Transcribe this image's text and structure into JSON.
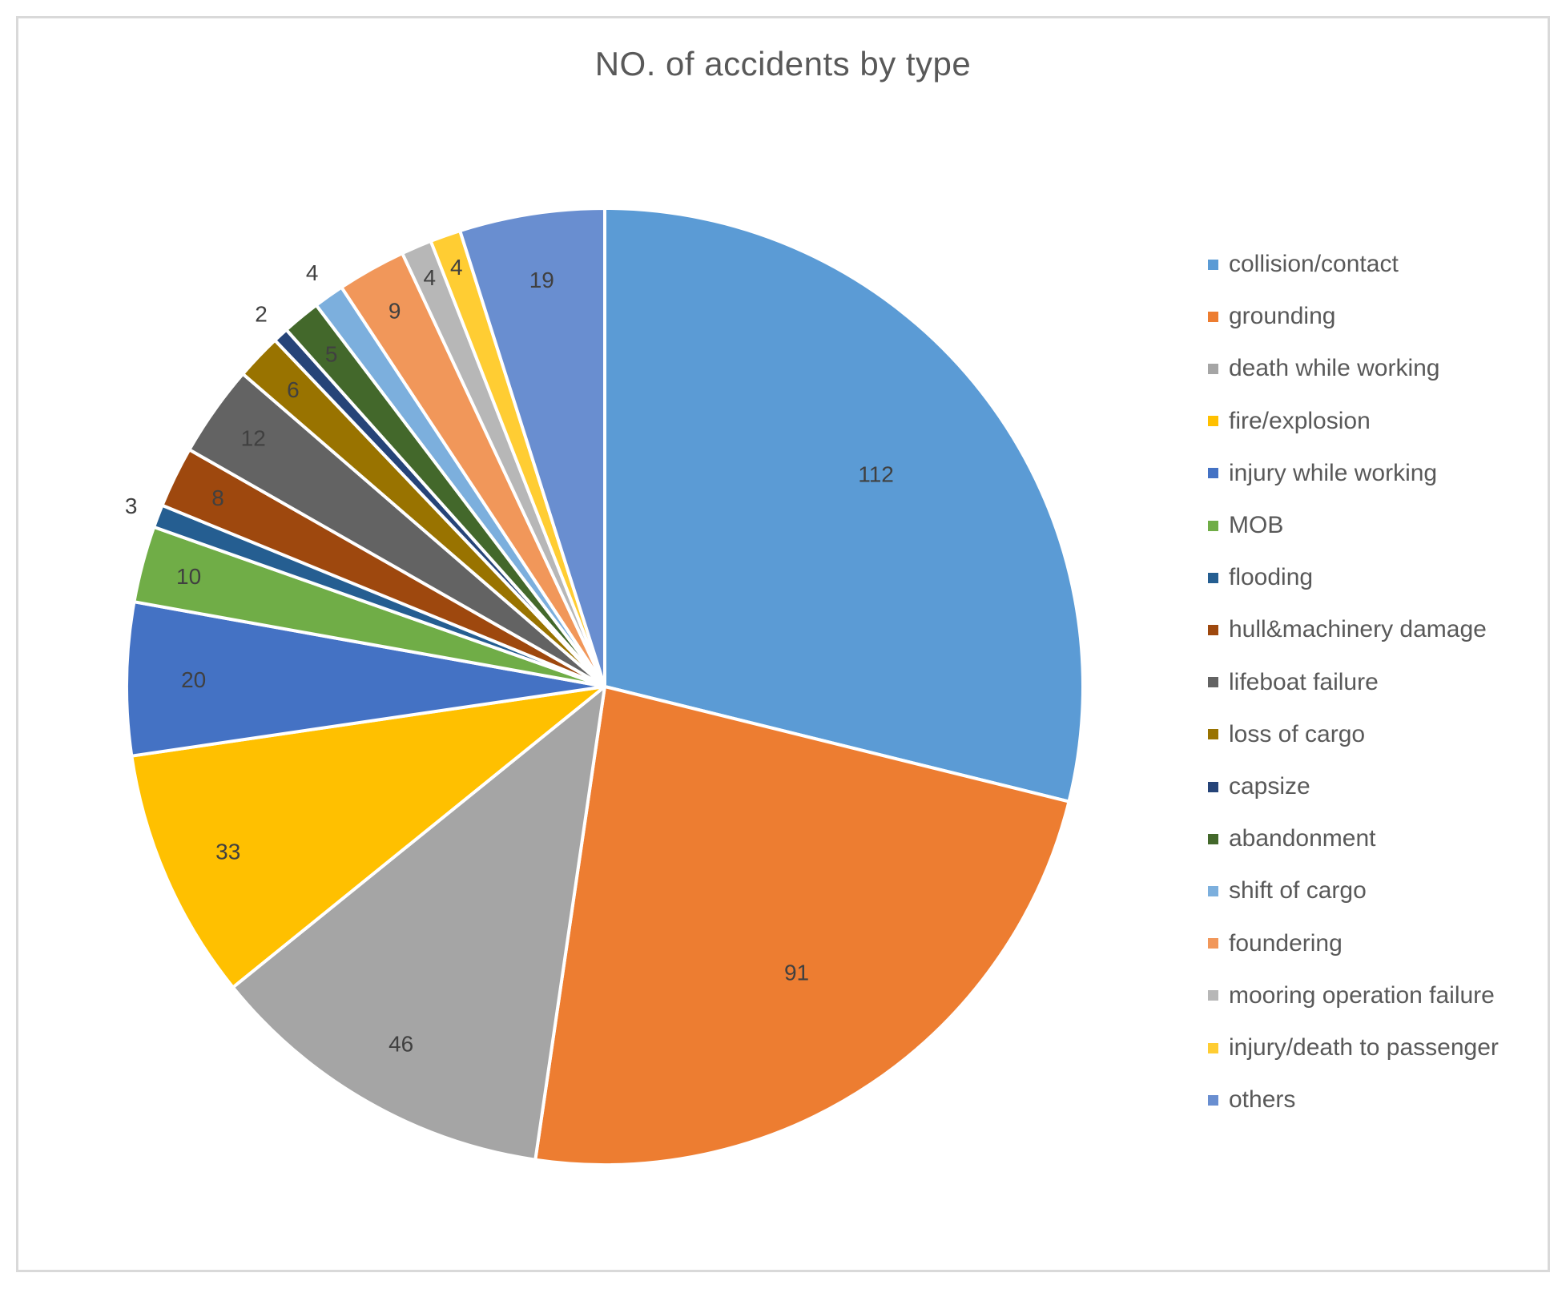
{
  "chart_data": {
    "type": "pie",
    "title": "NO. of accidents by type",
    "legend_position": "right",
    "slices": [
      {
        "label": "collision/contact",
        "value": 112,
        "color": "#5B9BD5"
      },
      {
        "label": "grounding",
        "value": 91,
        "color": "#ED7D31"
      },
      {
        "label": "death while working",
        "value": 46,
        "color": "#A5A5A5"
      },
      {
        "label": "fire/explosion",
        "value": 33,
        "color": "#FFC000"
      },
      {
        "label": "injury while working",
        "value": 20,
        "color": "#4472C4"
      },
      {
        "label": "MOB",
        "value": 10,
        "color": "#70AD47"
      },
      {
        "label": "flooding",
        "value": 3,
        "color": "#255E91"
      },
      {
        "label": "hull&machinery damage",
        "value": 8,
        "color": "#9E480E"
      },
      {
        "label": "lifeboat failure",
        "value": 12,
        "color": "#636363"
      },
      {
        "label": "loss of cargo",
        "value": 6,
        "color": "#997300"
      },
      {
        "label": "capsize",
        "value": 2,
        "color": "#264478"
      },
      {
        "label": "abandonment",
        "value": 5,
        "color": "#43682B"
      },
      {
        "label": "shift of cargo",
        "value": 4,
        "color": "#7CAFDD"
      },
      {
        "label": "foundering",
        "value": 9,
        "color": "#F1975A"
      },
      {
        "label": "mooring operation failure",
        "value": 4,
        "color": "#B7B7B7"
      },
      {
        "label": "injury/death to passenger",
        "value": 4,
        "color": "#FFCD33"
      },
      {
        "label": "others",
        "value": 19,
        "color": "#698ED0"
      }
    ]
  }
}
